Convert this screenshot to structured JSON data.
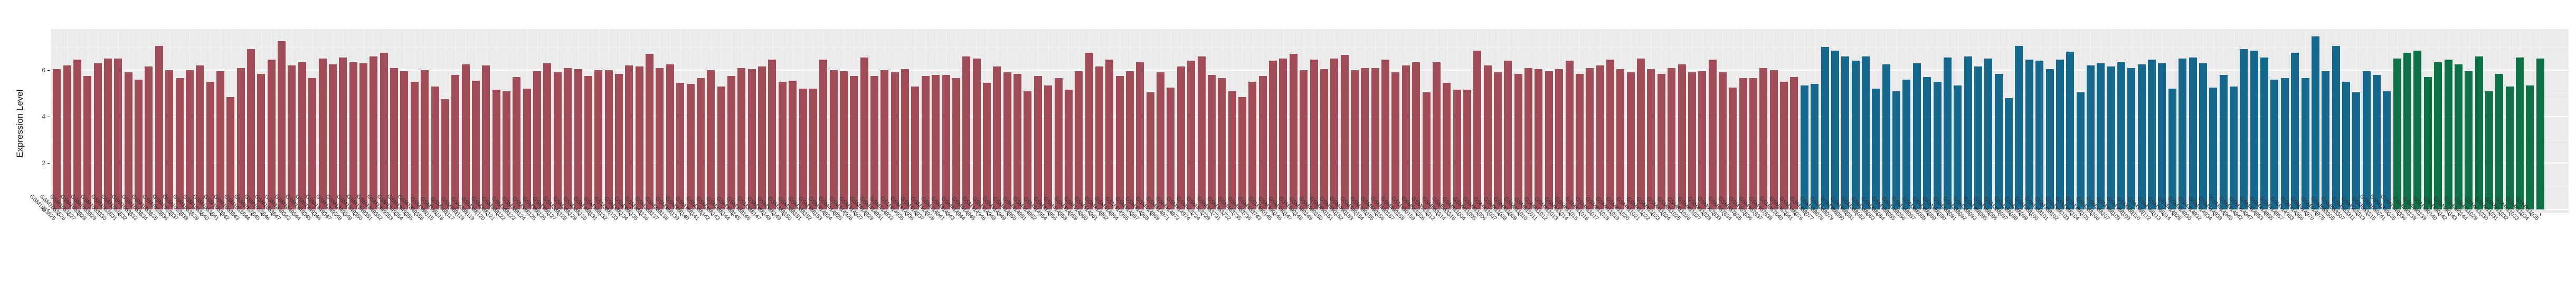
{
  "chart_data": {
    "type": "bar",
    "title": "",
    "xlabel": "",
    "ylabel": "Expression Level",
    "y_ticks": [
      0,
      2,
      4,
      6
    ],
    "y_minor_ticks": [
      1,
      3,
      5,
      7
    ],
    "ylim": [
      0,
      7.8
    ],
    "grid": "white major and minor horizontal and vertical gridlines on gray panel",
    "legend_position": "none",
    "panel_background": "#ebebeb",
    "series": [
      {
        "name": "series-1-red",
        "color": "#a14d58",
        "categories": [
          "GSM1053825",
          "GSM1053826",
          "GSM1053827",
          "GSM1053828",
          "GSM1053829",
          "GSM1053830",
          "GSM1053831",
          "GSM1053832",
          "GSM1053833",
          "GSM1053834",
          "GSM1053835",
          "GSM1053836",
          "GSM1053837",
          "GSM1053838",
          "GSM1053839",
          "GSM1053840",
          "GSM1053841",
          "GSM1053842",
          "GSM1053843",
          "GSM1053844",
          "GSM1053845",
          "GSM1053846",
          "GSM1053847",
          "GSM1849343",
          "GSM1849344",
          "GSM1849345",
          "GSM1849346",
          "GSM1849347",
          "GSM1849348",
          "GSM1849349",
          "GSM1849350",
          "GSM1849351",
          "GSM1849352",
          "GSM1849353",
          "GSM1849354",
          "GSM1849355",
          "GSM1849356",
          "GSM388115",
          "GSM388116",
          "GSM388117",
          "GSM388118",
          "GSM388119",
          "GSM388120",
          "GSM388121",
          "GSM388122",
          "GSM388123",
          "GSM388124",
          "GSM388125",
          "GSM388126",
          "GSM388127",
          "GSM388128",
          "GSM388129",
          "GSM388130",
          "GSM388131",
          "GSM388132",
          "GSM388133",
          "GSM388134",
          "GSM388135",
          "GSM388136",
          "GSM388137",
          "GSM388138",
          "GSM388139",
          "GSM388140",
          "GSM388141",
          "GSM388142",
          "GSM388143",
          "GSM388144",
          "GSM388145",
          "GSM388146",
          "GSM388147",
          "GSM388148",
          "GSM388149",
          "GSM388150",
          "GSM388151",
          "GSM388152",
          "GSM388153",
          "GSM414924",
          "GSM414925",
          "GSM414926",
          "GSM414927",
          "GSM414929",
          "GSM414931",
          "GSM414933",
          "GSM414935",
          "GSM414936",
          "GSM414937",
          "GSM414939",
          "GSM414941",
          "GSM414943",
          "GSM414944",
          "GSM414945",
          "GSM414946",
          "GSM414948",
          "GSM414949",
          "GSM414950",
          "GSM414951",
          "GSM414952",
          "GSM414954",
          "GSM414956",
          "GSM414958",
          "GSM414959",
          "GSM414960",
          "GSM414961",
          "GSM414962",
          "GSM414964",
          "GSM414965",
          "GSM414967",
          "GSM414968",
          "GSM414969",
          "GSM414971",
          "GSM414973",
          "GSM414974",
          "GSM463724",
          "GSM463728",
          "GSM463731",
          "GSM463732",
          "GSM463735",
          "GSM463736",
          "GSM463743",
          "GSM490145",
          "GSM490146",
          "GSM490147",
          "GSM490148",
          "GSM490149",
          "GSM490150",
          "GSM490151",
          "GSM490152",
          "GSM490153",
          "GSM490154",
          "GSM490155",
          "GSM490156",
          "GSM490157",
          "GSM490158",
          "GSM490159",
          "GSM563306",
          "GSM563312",
          "GSM563314",
          "GSM563316",
          "GSM811004",
          "GSM811005",
          "GSM811006",
          "GSM811007",
          "GSM811008",
          "GSM811009",
          "GSM811010",
          "GSM811011",
          "GSM811012",
          "GSM811013",
          "GSM811014",
          "GSM811015",
          "GSM811016",
          "GSM811017",
          "GSM811018",
          "GSM811019",
          "GSM811020",
          "GSM811021",
          "GSM811022",
          "GSM811023",
          "GSM811024",
          "GSM811025",
          "GSM811026",
          "GSM811027",
          "GSM811028",
          "GSM967633",
          "GSM967634",
          "GSM967635",
          "GSM967636",
          "GSM967637",
          "GSM967638",
          "GSM967640",
          "GSM967641"
        ],
        "values": [
          6.05,
          6.2,
          6.45,
          5.75,
          6.3,
          6.5,
          6.5,
          5.9,
          5.6,
          6.15,
          7.05,
          6.0,
          5.65,
          6.0,
          6.2,
          5.5,
          5.95,
          4.85,
          6.1,
          6.9,
          5.85,
          6.45,
          7.25,
          6.2,
          6.35,
          5.65,
          6.5,
          6.25,
          6.55,
          6.35,
          6.3,
          6.6,
          6.75,
          6.1,
          5.95,
          5.5,
          6.0,
          5.3,
          4.75,
          5.8,
          6.25,
          5.55,
          6.2,
          5.15,
          5.1,
          5.7,
          5.2,
          5.95,
          6.3,
          5.9,
          6.1,
          6.05,
          5.75,
          6.0,
          6.0,
          5.85,
          6.2,
          6.15,
          6.7,
          6.1,
          6.25,
          5.45,
          5.4,
          5.65,
          6.0,
          5.3,
          5.75,
          6.1,
          6.05,
          6.15,
          6.45,
          5.5,
          5.55,
          5.2,
          5.2,
          6.45,
          6.0,
          5.95,
          5.75,
          6.55,
          5.75,
          6.0,
          5.9,
          6.05,
          5.3,
          5.75,
          5.8,
          5.8,
          5.65,
          6.6,
          6.5,
          5.45,
          6.15,
          5.9,
          5.85,
          5.1,
          5.75,
          5.35,
          5.65,
          5.15,
          5.95,
          6.75,
          6.15,
          6.45,
          5.75,
          5.95,
          6.35,
          5.05,
          5.9,
          5.25,
          6.15,
          6.4,
          6.6,
          5.8,
          5.65,
          5.1,
          4.85,
          5.5,
          5.75,
          6.4,
          6.5,
          6.7,
          6.0,
          6.45,
          6.05,
          6.5,
          6.65,
          6.0,
          6.1,
          6.1,
          6.45,
          5.9,
          6.2,
          6.35,
          5.05,
          6.35,
          5.45,
          5.15,
          5.15,
          6.85,
          6.2,
          5.9,
          6.4,
          5.85,
          6.1,
          6.05,
          5.95,
          6.05,
          6.4,
          5.85,
          6.1,
          6.2,
          6.45,
          6.05,
          5.9,
          6.5,
          6.05,
          5.85,
          6.1,
          6.25,
          5.9,
          5.95,
          6.45,
          5.9,
          5.25,
          5.65,
          5.65,
          6.1,
          6.0,
          5.5,
          5.7
        ]
      },
      {
        "name": "series-2-blue",
        "color": "#16698e",
        "categories": [
          "GSM388076",
          "GSM388077",
          "GSM388078",
          "GSM388079",
          "GSM388080",
          "GSM388081",
          "GSM388082",
          "GSM388083",
          "GSM388084",
          "GSM388085",
          "GSM388086",
          "GSM388087",
          "GSM388088",
          "GSM388089",
          "GSM388090",
          "GSM388091",
          "GSM388092",
          "GSM388093",
          "GSM388095",
          "GSM388096",
          "GSM388097",
          "GSM388098",
          "GSM388099",
          "GSM388100",
          "GSM388101",
          "GSM388102",
          "GSM388103",
          "GSM388104",
          "GSM388105",
          "GSM388106",
          "GSM388107",
          "GSM388108",
          "GSM388109",
          "GSM388110",
          "GSM388112",
          "GSM388113",
          "GSM388114",
          "GSM414928",
          "GSM414930",
          "GSM414932",
          "GSM414934",
          "GSM414938",
          "GSM414940",
          "GSM414942",
          "GSM414947",
          "GSM414953",
          "GSM414955",
          "GSM414957",
          "GSM414963",
          "GSM414966",
          "GSM414970",
          "GSM414975",
          "GSM563305",
          "GSM563307",
          "GSM563311",
          "GSM563313",
          "GSM563315",
          "GSM1060741"
        ],
        "values": [
          5.35,
          5.4,
          7.0,
          6.85,
          6.6,
          6.4,
          6.6,
          5.2,
          6.25,
          5.1,
          5.6,
          6.3,
          5.7,
          5.5,
          6.55,
          5.35,
          6.6,
          6.15,
          6.5,
          5.85,
          4.8,
          7.05,
          6.45,
          6.4,
          6.05,
          6.45,
          6.8,
          5.05,
          6.2,
          6.3,
          6.15,
          6.35,
          6.1,
          6.25,
          6.45,
          6.3,
          5.2,
          6.5,
          6.55,
          6.3,
          5.25,
          5.8,
          5.3,
          6.9,
          6.85,
          6.55,
          5.6,
          5.65,
          6.75,
          5.65,
          7.45,
          5.95,
          7.05,
          5.5,
          5.05,
          5.95,
          5.8,
          5.1
        ]
      },
      {
        "name": "series-3-green",
        "color": "#0d7245",
        "categories": [
          "GSM1849335",
          "GSM1849336",
          "GSM490138",
          "GSM490139",
          "GSM490140",
          "GSM490142",
          "GSM490143",
          "GSM490144",
          "GSM811029",
          "GSM811030",
          "GSM811031",
          "GSM811032",
          "GSM811033",
          "GSM811034",
          "GSM811035"
        ],
        "values": [
          6.5,
          6.75,
          6.85,
          5.7,
          6.35,
          6.45,
          6.25,
          5.95,
          6.6,
          5.1,
          5.85,
          5.3,
          6.55,
          5.35,
          6.5
        ]
      }
    ]
  }
}
